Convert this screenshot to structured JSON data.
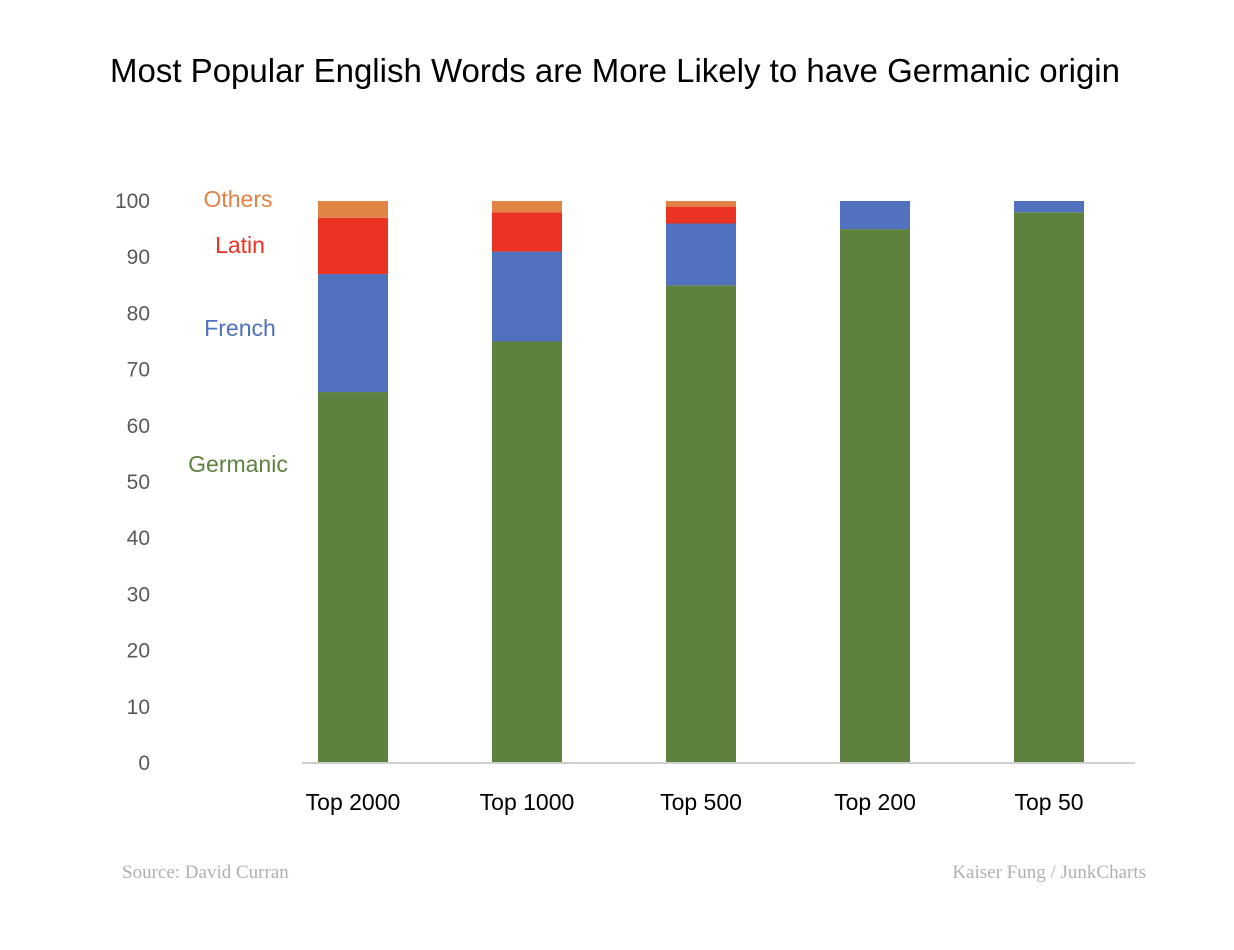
{
  "chart_data": {
    "type": "bar",
    "stacked": true,
    "title": "Most Popular English Words are More Likely to have Germanic origin",
    "xlabel": "",
    "ylabel": "",
    "ylim": [
      0,
      100
    ],
    "yticks": [
      0,
      10,
      20,
      30,
      40,
      50,
      60,
      70,
      80,
      90,
      100
    ],
    "grid": false,
    "legend": "left, inline labels",
    "categories": [
      "Top 2000",
      "Top 1000",
      "Top 500",
      "Top 200",
      "Top 50"
    ],
    "series": [
      {
        "name": "Germanic",
        "color": "#5E813F",
        "values": [
          66,
          75,
          85,
          95,
          98
        ]
      },
      {
        "name": "French",
        "color": "#4F71BE",
        "values": [
          21,
          16,
          11,
          5,
          2
        ]
      },
      {
        "name": "Latin",
        "color": "#EA3323",
        "values": [
          10,
          7,
          3,
          0,
          0
        ]
      },
      {
        "name": "Others",
        "color": "#E08344",
        "values": [
          3,
          2,
          1,
          0,
          0
        ]
      }
    ]
  },
  "footer": {
    "source": "Source: David Curran",
    "credit": "Kaiser Fung / JunkCharts"
  }
}
